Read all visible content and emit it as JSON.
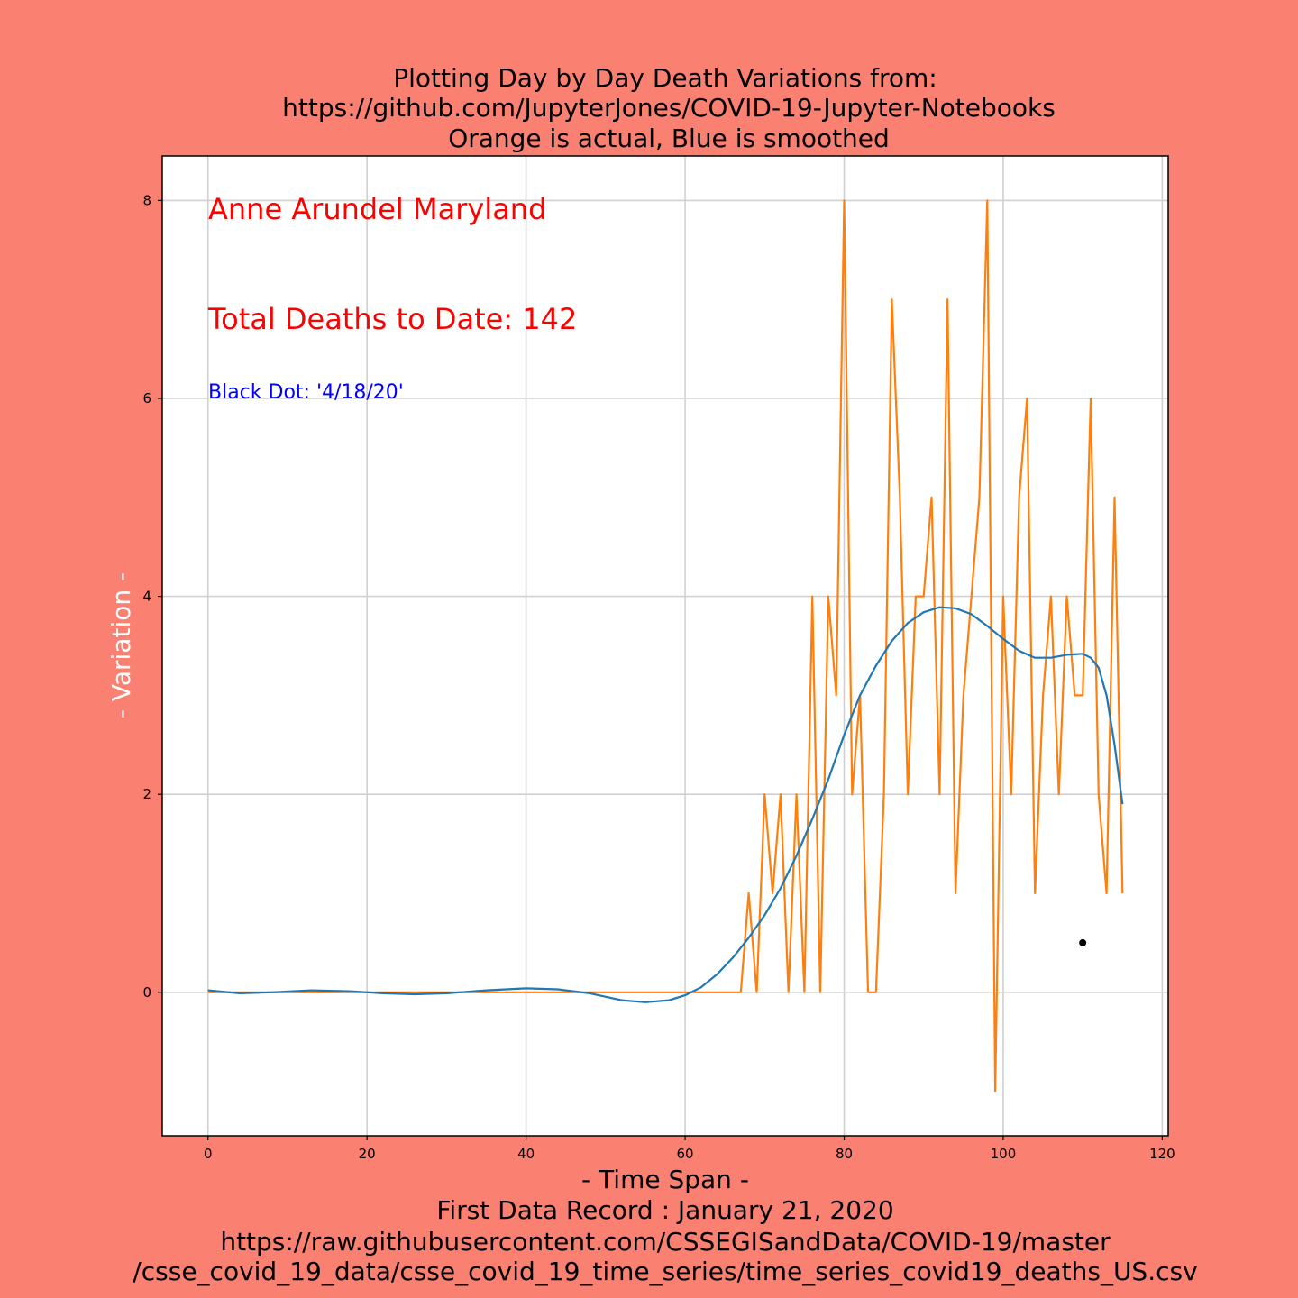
{
  "chart_data": {
    "type": "line",
    "title_lines": [
      "Plotting Day by Day Death Variations from:",
      "https://github.com/JupyterJones/COVID-19-Jupyter-Notebooks",
      "Orange is actual, Blue is smoothed"
    ],
    "xlabel_lines": [
      "- Time Span -",
      "First Data Record : January 21, 2020",
      "https://raw.githubusercontent.com/CSSEGISandData/COVID-19/master",
      "/csse_covid_19_data/csse_covid_19_time_series/time_series_covid19_deaths_US.csv"
    ],
    "ylabel": "- Variation -",
    "xlim": [
      -5.75,
      120.75
    ],
    "ylim": [
      -1.45,
      8.45
    ],
    "xticks": [
      0,
      20,
      40,
      60,
      80,
      100,
      120
    ],
    "yticks": [
      0,
      2,
      4,
      6,
      8
    ],
    "grid": true,
    "annotations": {
      "location": "Anne Arundel Maryland",
      "total_deaths": "Total Deaths to Date: 142",
      "black_dot": "Black Dot:  '4/18/20'"
    },
    "marker": {
      "x": 110,
      "y": 0.5,
      "color": "#000000"
    },
    "colors": {
      "background": "#fa8072",
      "actual": "#ff7f0e",
      "smoothed": "#1f77b4",
      "annotation_red": "#ff0000",
      "annotation_blue": "#0000ff"
    },
    "series": [
      {
        "role": "actual",
        "x": [
          0,
          1,
          2,
          3,
          4,
          5,
          6,
          7,
          8,
          9,
          10,
          11,
          12,
          13,
          14,
          15,
          16,
          17,
          18,
          19,
          20,
          21,
          22,
          23,
          24,
          25,
          26,
          27,
          28,
          29,
          30,
          31,
          32,
          33,
          34,
          35,
          36,
          37,
          38,
          39,
          40,
          41,
          42,
          43,
          44,
          45,
          46,
          47,
          48,
          49,
          50,
          51,
          52,
          53,
          54,
          55,
          56,
          57,
          58,
          59,
          60,
          61,
          62,
          63,
          64,
          65,
          66,
          67,
          68,
          69,
          70,
          71,
          72,
          73,
          74,
          75,
          76,
          77,
          78,
          79,
          80,
          81,
          82,
          83,
          84,
          85,
          86,
          87,
          88,
          89,
          90,
          91,
          92,
          93,
          94,
          95,
          96,
          97,
          98,
          99,
          100,
          101,
          102,
          103,
          104,
          105,
          106,
          107,
          108,
          109,
          110,
          111,
          112,
          113,
          114,
          115
        ],
        "values": [
          0,
          0,
          0,
          0,
          0,
          0,
          0,
          0,
          0,
          0,
          0,
          0,
          0,
          0,
          0,
          0,
          0,
          0,
          0,
          0,
          0,
          0,
          0,
          0,
          0,
          0,
          0,
          0,
          0,
          0,
          0,
          0,
          0,
          0,
          0,
          0,
          0,
          0,
          0,
          0,
          0,
          0,
          0,
          0,
          0,
          0,
          0,
          0,
          0,
          0,
          0,
          0,
          0,
          0,
          0,
          0,
          0,
          0,
          0,
          0,
          0,
          0,
          0,
          0,
          0,
          0,
          0,
          0,
          1,
          0,
          2,
          1,
          2,
          0,
          2,
          0,
          4,
          0,
          4,
          3,
          8,
          2,
          3,
          0,
          0,
          2,
          7,
          5,
          2,
          4,
          4,
          5,
          2,
          7,
          1,
          3,
          4,
          5,
          8,
          -1,
          4,
          2,
          5,
          6,
          1,
          3,
          4,
          2,
          4,
          3,
          3,
          6,
          2,
          1,
          5,
          1
        ]
      },
      {
        "role": "smoothed",
        "x": [
          0,
          4,
          8,
          13,
          18,
          22,
          26,
          30,
          35,
          40,
          44,
          48,
          52,
          55,
          58,
          60,
          62,
          64,
          66,
          68,
          70,
          72,
          74,
          76,
          78,
          80,
          82,
          84,
          86,
          88,
          90,
          92,
          94,
          96,
          98,
          100,
          102,
          104,
          106,
          108,
          110,
          111,
          112,
          113,
          114,
          115
        ],
        "values": [
          0.02,
          -0.01,
          0.0,
          0.02,
          0.01,
          -0.01,
          -0.02,
          -0.01,
          0.02,
          0.04,
          0.03,
          -0.01,
          -0.08,
          -0.1,
          -0.08,
          -0.03,
          0.05,
          0.18,
          0.35,
          0.55,
          0.78,
          1.05,
          1.38,
          1.75,
          2.15,
          2.6,
          3.0,
          3.3,
          3.55,
          3.73,
          3.84,
          3.89,
          3.88,
          3.82,
          3.7,
          3.57,
          3.45,
          3.38,
          3.38,
          3.41,
          3.42,
          3.38,
          3.28,
          3.0,
          2.5,
          1.9
        ]
      }
    ]
  }
}
